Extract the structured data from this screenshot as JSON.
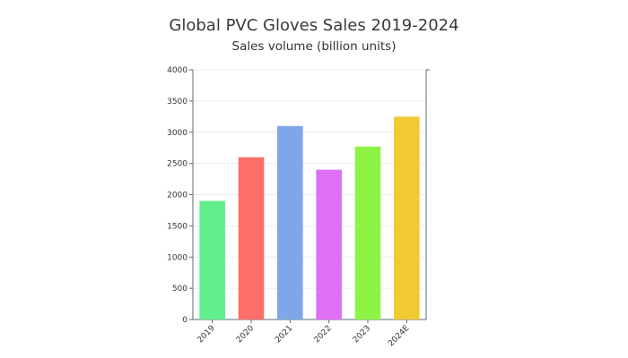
{
  "chart_data": {
    "type": "bar",
    "title": "Global PVC Gloves Sales 2019-2024",
    "subtitle": "Sales volume (billion units)",
    "categories": [
      "2019",
      "2020",
      "2021",
      "2022",
      "2023",
      "2024E"
    ],
    "values": [
      1900,
      2600,
      3100,
      2400,
      2770,
      3250
    ],
    "colors": [
      "#63ee8e",
      "#ff6f69",
      "#7ea6e8",
      "#dd70f5",
      "#8ef443",
      "#f2c933"
    ],
    "ylim": [
      0,
      4000
    ],
    "yticks": [
      0,
      500,
      1000,
      1500,
      2000,
      2500,
      3000,
      3500,
      4000
    ],
    "ytick_labels": [
      "0",
      "500",
      "1000",
      "1500",
      "2000",
      "2500",
      "3000",
      "3500",
      "4000"
    ],
    "grid": true,
    "xlabel": "",
    "ylabel": ""
  }
}
